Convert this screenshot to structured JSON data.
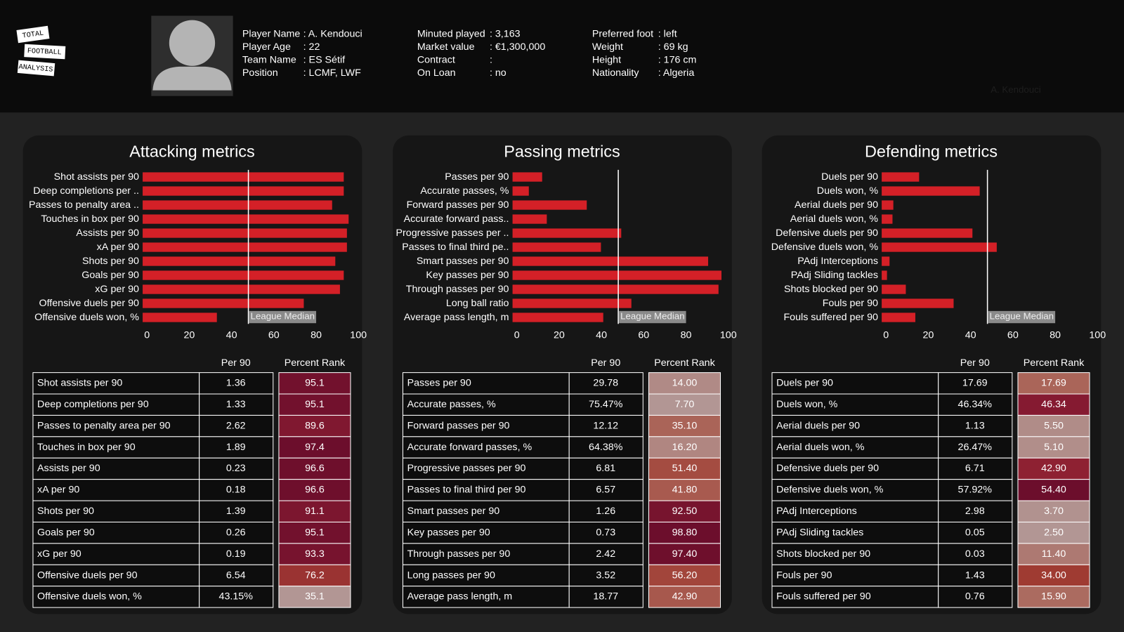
{
  "header": {
    "logo": [
      "TOTAL",
      "FOOTBALL",
      "ANALYSIS"
    ],
    "fields": [
      [
        {
          "label": "Player Name",
          "value": ": A. Kendouci"
        },
        {
          "label": "Player Age",
          "value": ": 22"
        },
        {
          "label": "Team Name",
          "value": ": ES Sétif"
        },
        {
          "label": "Position",
          "value": ": LCMF, LWF"
        }
      ],
      [
        {
          "label": "Minuted played",
          "value": ": 3,163"
        },
        {
          "label": "Market value",
          "value": ": €1,300,000"
        },
        {
          "label": "Contract",
          "value": ":"
        },
        {
          "label": "On Loan",
          "value": ": no"
        }
      ],
      [
        {
          "label": "Preferred foot",
          "value": ": left"
        },
        {
          "label": "Weight",
          "value": ": 69 kg"
        },
        {
          "label": "Height",
          "value": ": 176 cm"
        },
        {
          "label": "Nationality",
          "value": ": Algeria"
        }
      ]
    ],
    "watermark": "A. Kendouci"
  },
  "chart_data": [
    {
      "type": "bar",
      "orientation": "horizontal",
      "title": "Attacking metrics",
      "categories": [
        "Shot assists per 90",
        "Deep completions per ..",
        "Passes to penalty area ..",
        "Touches in box per 90",
        "Assists per 90",
        "xA per 90",
        "Shots per 90",
        "Goals per 90",
        "xG per 90",
        "Offensive duels per 90",
        "Offensive duels won, %"
      ],
      "values": [
        95.1,
        95.1,
        89.6,
        97.4,
        96.6,
        96.6,
        91.1,
        95.1,
        93.3,
        76.2,
        35.1
      ],
      "color": "#d42027",
      "xlim": [
        0,
        100
      ],
      "xticks": [
        0,
        20,
        40,
        60,
        80,
        100
      ],
      "median": 50,
      "median_label": "League Median"
    },
    {
      "type": "bar",
      "orientation": "horizontal",
      "title": "Passing metrics",
      "categories": [
        "Passes per 90",
        "Accurate passes, %",
        "Forward passes per 90",
        "Accurate forward pass..",
        "Progressive passes per ..",
        "Passes to final third pe..",
        "Smart passes per 90",
        "Key passes per 90",
        "Through passes per 90",
        "Long ball ratio",
        "Average pass length, m"
      ],
      "values": [
        14,
        7.7,
        35.1,
        16.2,
        51.4,
        41.8,
        92.5,
        98.8,
        97.4,
        56.2,
        42.9
      ],
      "color": "#d42027",
      "xlim": [
        0,
        100
      ],
      "xticks": [
        0,
        20,
        40,
        60,
        80,
        100
      ],
      "median": 50,
      "median_label": "League Median"
    },
    {
      "type": "bar",
      "orientation": "horizontal",
      "title": "Defending metrics",
      "categories": [
        "Duels per 90",
        "Duels won, %",
        "Aerial duels per 90",
        "Aerial duels won, %",
        "Defensive duels per 90",
        "Defensive duels won, %",
        "PAdj Interceptions",
        "PAdj Sliding tackles",
        "Shots blocked per 90",
        "Fouls per 90",
        "Fouls suffered per 90"
      ],
      "values": [
        17.69,
        46.34,
        5.5,
        5.1,
        42.9,
        54.4,
        3.7,
        2.5,
        11.4,
        34,
        15.9
      ],
      "color": "#d42027",
      "xlim": [
        0,
        100
      ],
      "xticks": [
        0,
        20,
        40,
        60,
        80,
        100
      ],
      "median": 50,
      "median_label": "League Median"
    }
  ],
  "tables": [
    {
      "columns": [
        "Per 90",
        "Percent Rank"
      ],
      "rows": [
        [
          "Shot assists per 90",
          "1.36",
          "95.1"
        ],
        [
          "Deep completions per 90",
          "1.33",
          "95.1"
        ],
        [
          "Passes to penalty area per 90",
          "2.62",
          "89.6"
        ],
        [
          "Touches in box per 90",
          "1.89",
          "97.4"
        ],
        [
          "Assists per 90",
          "0.23",
          "96.6"
        ],
        [
          "xA per 90",
          "0.18",
          "96.6"
        ],
        [
          "Shots per 90",
          "1.39",
          "91.1"
        ],
        [
          "Goals per 90",
          "0.26",
          "95.1"
        ],
        [
          "xG per 90",
          "0.19",
          "93.3"
        ],
        [
          "Offensive duels per 90",
          "6.54",
          "76.2"
        ],
        [
          "Offensive duels won, %",
          "43.15%",
          "35.1"
        ]
      ]
    },
    {
      "columns": [
        "Per 90",
        "Percent Rank"
      ],
      "rows": [
        [
          "Passes per 90",
          "29.78",
          "14.00"
        ],
        [
          "Accurate passes, %",
          "75.47%",
          "7.70"
        ],
        [
          "Forward passes per 90",
          "12.12",
          "35.10"
        ],
        [
          "Accurate forward passes, %",
          "64.38%",
          "16.20"
        ],
        [
          "Progressive passes per 90",
          "6.81",
          "51.40"
        ],
        [
          "Passes to final third per 90",
          "6.57",
          "41.80"
        ],
        [
          "Smart passes per 90",
          "1.26",
          "92.50"
        ],
        [
          "Key passes per 90",
          "0.73",
          "98.80"
        ],
        [
          "Through passes per 90",
          "2.42",
          "97.40"
        ],
        [
          "Long passes per 90",
          "3.52",
          "56.20"
        ],
        [
          "Average pass length, m",
          "18.77",
          "42.90"
        ]
      ]
    },
    {
      "columns": [
        "Per 90",
        "Percent Rank"
      ],
      "rows": [
        [
          "Duels per 90",
          "17.69",
          "17.69"
        ],
        [
          "Duels won, %",
          "46.34%",
          "46.34"
        ],
        [
          "Aerial duels per 90",
          "1.13",
          "5.50"
        ],
        [
          "Aerial duels won, %",
          "26.47%",
          "5.10"
        ],
        [
          "Defensive duels per 90",
          "6.71",
          "42.90"
        ],
        [
          "Defensive duels won, %",
          "57.92%",
          "54.40"
        ],
        [
          "PAdj Interceptions",
          "2.98",
          "3.70"
        ],
        [
          "PAdj Sliding tackles",
          "0.05",
          "2.50"
        ],
        [
          "Shots blocked per 90",
          "0.03",
          "11.40"
        ],
        [
          "Fouls per 90",
          "1.43",
          "34.00"
        ],
        [
          "Fouls suffered per 90",
          "0.76",
          "15.90"
        ]
      ]
    }
  ]
}
